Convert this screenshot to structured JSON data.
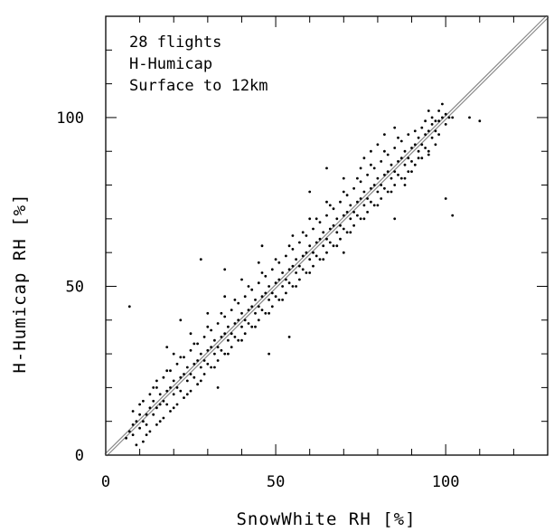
{
  "chart_data": {
    "type": "scatter",
    "xlabel": "SnowWhite RH [%]",
    "ylabel": "H-Humicap RH [%]",
    "xlim": [
      0,
      130
    ],
    "ylim": [
      0,
      130
    ],
    "x_ticks": [
      "0",
      "50",
      "100"
    ],
    "y_ticks": [
      "0",
      "50",
      "100"
    ],
    "annotations": [
      "28 flights",
      "H-Humicap",
      "Surface to 12km"
    ],
    "reference_line": {
      "from": [
        0,
        0
      ],
      "to": [
        130,
        130
      ],
      "label": ""
    },
    "grid": false,
    "series": [
      {
        "marker_color": "#000000",
        "points": [
          [
            6,
            5
          ],
          [
            7,
            7
          ],
          [
            8,
            9
          ],
          [
            8,
            6
          ],
          [
            9,
            10
          ],
          [
            10,
            8
          ],
          [
            10,
            12
          ],
          [
            11,
            10
          ],
          [
            12,
            12
          ],
          [
            12,
            9
          ],
          [
            13,
            14
          ],
          [
            14,
            12
          ],
          [
            14,
            16
          ],
          [
            15,
            14
          ],
          [
            16,
            15
          ],
          [
            16,
            18
          ],
          [
            17,
            16
          ],
          [
            18,
            19
          ],
          [
            18,
            15
          ],
          [
            19,
            20
          ],
          [
            20,
            18
          ],
          [
            20,
            22
          ],
          [
            21,
            20
          ],
          [
            22,
            23
          ],
          [
            22,
            19
          ],
          [
            23,
            24
          ],
          [
            24,
            22
          ],
          [
            24,
            26
          ],
          [
            25,
            24
          ],
          [
            26,
            27
          ],
          [
            26,
            23
          ],
          [
            27,
            28
          ],
          [
            28,
            26
          ],
          [
            28,
            30
          ],
          [
            29,
            28
          ],
          [
            30,
            31
          ],
          [
            30,
            27
          ],
          [
            31,
            32
          ],
          [
            32,
            30
          ],
          [
            32,
            34
          ],
          [
            33,
            32
          ],
          [
            34,
            35
          ],
          [
            34,
            31
          ],
          [
            35,
            36
          ],
          [
            36,
            34
          ],
          [
            36,
            38
          ],
          [
            37,
            36
          ],
          [
            38,
            39
          ],
          [
            38,
            35
          ],
          [
            39,
            40
          ],
          [
            40,
            38
          ],
          [
            40,
            42
          ],
          [
            41,
            40
          ],
          [
            42,
            43
          ],
          [
            42,
            39
          ],
          [
            43,
            44
          ],
          [
            44,
            42
          ],
          [
            44,
            46
          ],
          [
            45,
            44
          ],
          [
            46,
            47
          ],
          [
            46,
            43
          ],
          [
            47,
            48
          ],
          [
            48,
            46
          ],
          [
            48,
            50
          ],
          [
            49,
            48
          ],
          [
            50,
            51
          ],
          [
            50,
            47
          ],
          [
            51,
            52
          ],
          [
            52,
            50
          ],
          [
            52,
            54
          ],
          [
            53,
            52
          ],
          [
            54,
            55
          ],
          [
            54,
            51
          ],
          [
            55,
            56
          ],
          [
            56,
            54
          ],
          [
            56,
            58
          ],
          [
            57,
            56
          ],
          [
            58,
            59
          ],
          [
            58,
            55
          ],
          [
            59,
            60
          ],
          [
            60,
            58
          ],
          [
            60,
            62
          ],
          [
            61,
            60
          ],
          [
            62,
            63
          ],
          [
            62,
            59
          ],
          [
            63,
            64
          ],
          [
            64,
            62
          ],
          [
            64,
            66
          ],
          [
            65,
            64
          ],
          [
            66,
            67
          ],
          [
            66,
            63
          ],
          [
            67,
            68
          ],
          [
            68,
            66
          ],
          [
            68,
            70
          ],
          [
            69,
            68
          ],
          [
            70,
            71
          ],
          [
            70,
            67
          ],
          [
            71,
            72
          ],
          [
            72,
            70
          ],
          [
            72,
            74
          ],
          [
            73,
            72
          ],
          [
            74,
            75
          ],
          [
            74,
            71
          ],
          [
            75,
            76
          ],
          [
            76,
            74
          ],
          [
            76,
            78
          ],
          [
            77,
            76
          ],
          [
            78,
            79
          ],
          [
            78,
            75
          ],
          [
            79,
            80
          ],
          [
            80,
            78
          ],
          [
            80,
            82
          ],
          [
            81,
            80
          ],
          [
            82,
            83
          ],
          [
            82,
            79
          ],
          [
            83,
            84
          ],
          [
            84,
            82
          ],
          [
            84,
            86
          ],
          [
            85,
            84
          ],
          [
            86,
            87
          ],
          [
            86,
            83
          ],
          [
            87,
            88
          ],
          [
            88,
            86
          ],
          [
            88,
            90
          ],
          [
            89,
            88
          ],
          [
            90,
            91
          ],
          [
            90,
            87
          ],
          [
            91,
            92
          ],
          [
            92,
            90
          ],
          [
            92,
            94
          ],
          [
            93,
            92
          ],
          [
            94,
            95
          ],
          [
            94,
            91
          ],
          [
            95,
            96
          ],
          [
            96,
            94
          ],
          [
            96,
            98
          ],
          [
            97,
            96
          ],
          [
            98,
            99
          ],
          [
            98,
            95
          ],
          [
            99,
            100
          ],
          [
            100,
            98
          ],
          [
            100,
            101
          ],
          [
            101,
            100
          ],
          [
            102,
            100
          ],
          [
            98,
            102
          ],
          [
            97,
            99
          ],
          [
            10,
            15
          ],
          [
            14,
            20
          ],
          [
            18,
            25
          ],
          [
            22,
            29
          ],
          [
            26,
            33
          ],
          [
            30,
            38
          ],
          [
            34,
            42
          ],
          [
            38,
            46
          ],
          [
            42,
            50
          ],
          [
            46,
            54
          ],
          [
            50,
            58
          ],
          [
            54,
            62
          ],
          [
            58,
            66
          ],
          [
            62,
            70
          ],
          [
            66,
            74
          ],
          [
            70,
            78
          ],
          [
            74,
            82
          ],
          [
            78,
            86
          ],
          [
            82,
            90
          ],
          [
            86,
            94
          ],
          [
            12,
            6
          ],
          [
            16,
            10
          ],
          [
            20,
            14
          ],
          [
            24,
            18
          ],
          [
            28,
            22
          ],
          [
            32,
            26
          ],
          [
            36,
            30
          ],
          [
            40,
            34
          ],
          [
            44,
            38
          ],
          [
            48,
            42
          ],
          [
            52,
            46
          ],
          [
            56,
            50
          ],
          [
            60,
            54
          ],
          [
            64,
            58
          ],
          [
            68,
            62
          ],
          [
            72,
            66
          ],
          [
            76,
            70
          ],
          [
            80,
            74
          ],
          [
            84,
            78
          ],
          [
            88,
            82
          ],
          [
            15,
            22
          ],
          [
            20,
            30
          ],
          [
            25,
            36
          ],
          [
            30,
            42
          ],
          [
            35,
            47
          ],
          [
            40,
            52
          ],
          [
            45,
            57
          ],
          [
            55,
            65
          ],
          [
            60,
            70
          ],
          [
            65,
            75
          ],
          [
            75,
            85
          ],
          [
            80,
            92
          ],
          [
            82,
            95
          ],
          [
            85,
            97
          ],
          [
            76,
            88
          ],
          [
            78,
            90
          ],
          [
            70,
            82
          ],
          [
            88,
            80
          ],
          [
            90,
            84
          ],
          [
            95,
            89
          ],
          [
            7,
            44
          ],
          [
            28,
            58
          ],
          [
            100,
            76
          ],
          [
            102,
            71
          ],
          [
            107,
            100
          ],
          [
            110,
            99
          ],
          [
            95,
            102
          ],
          [
            99,
            104
          ],
          [
            22,
            40
          ],
          [
            60,
            78
          ],
          [
            46,
            62
          ],
          [
            54,
            35
          ],
          [
            18,
            32
          ],
          [
            35,
            55
          ],
          [
            65,
            85
          ],
          [
            92,
            88
          ],
          [
            33,
            20
          ],
          [
            48,
            30
          ],
          [
            70,
            60
          ],
          [
            85,
            70
          ],
          [
            9,
            3
          ],
          [
            11,
            4
          ],
          [
            13,
            7
          ],
          [
            15,
            9
          ],
          [
            17,
            11
          ],
          [
            19,
            13
          ],
          [
            21,
            15
          ],
          [
            23,
            17
          ],
          [
            25,
            19
          ],
          [
            27,
            21
          ],
          [
            29,
            24
          ],
          [
            31,
            26
          ],
          [
            33,
            28
          ],
          [
            35,
            30
          ],
          [
            37,
            32
          ],
          [
            39,
            34
          ],
          [
            41,
            36
          ],
          [
            43,
            38
          ],
          [
            45,
            40
          ],
          [
            47,
            42
          ],
          [
            49,
            44
          ],
          [
            51,
            46
          ],
          [
            53,
            48
          ],
          [
            55,
            50
          ],
          [
            57,
            52
          ],
          [
            59,
            54
          ],
          [
            61,
            56
          ],
          [
            63,
            58
          ],
          [
            65,
            60
          ],
          [
            67,
            62
          ],
          [
            69,
            64
          ],
          [
            71,
            66
          ],
          [
            73,
            68
          ],
          [
            75,
            70
          ],
          [
            77,
            72
          ],
          [
            79,
            74
          ],
          [
            81,
            76
          ],
          [
            83,
            78
          ],
          [
            85,
            80
          ],
          [
            87,
            82
          ],
          [
            89,
            84
          ],
          [
            91,
            86
          ],
          [
            93,
            88
          ],
          [
            95,
            90
          ],
          [
            97,
            92
          ],
          [
            11,
            16
          ],
          [
            13,
            18
          ],
          [
            15,
            20
          ],
          [
            17,
            23
          ],
          [
            19,
            25
          ],
          [
            21,
            27
          ],
          [
            23,
            29
          ],
          [
            25,
            31
          ],
          [
            27,
            33
          ],
          [
            29,
            35
          ],
          [
            31,
            37
          ],
          [
            33,
            39
          ],
          [
            35,
            41
          ],
          [
            37,
            43
          ],
          [
            39,
            45
          ],
          [
            41,
            47
          ],
          [
            43,
            49
          ],
          [
            45,
            51
          ],
          [
            47,
            53
          ],
          [
            49,
            55
          ],
          [
            51,
            57
          ],
          [
            53,
            59
          ],
          [
            55,
            61
          ],
          [
            57,
            63
          ],
          [
            59,
            65
          ],
          [
            61,
            67
          ],
          [
            63,
            69
          ],
          [
            65,
            71
          ],
          [
            67,
            73
          ],
          [
            69,
            75
          ],
          [
            71,
            77
          ],
          [
            73,
            79
          ],
          [
            75,
            81
          ],
          [
            77,
            83
          ],
          [
            79,
            85
          ],
          [
            81,
            87
          ],
          [
            83,
            89
          ],
          [
            85,
            91
          ],
          [
            87,
            93
          ],
          [
            89,
            95
          ],
          [
            91,
            96
          ],
          [
            93,
            97
          ],
          [
            94,
            99
          ],
          [
            96,
            100
          ],
          [
            8,
            13
          ]
        ]
      }
    ]
  }
}
